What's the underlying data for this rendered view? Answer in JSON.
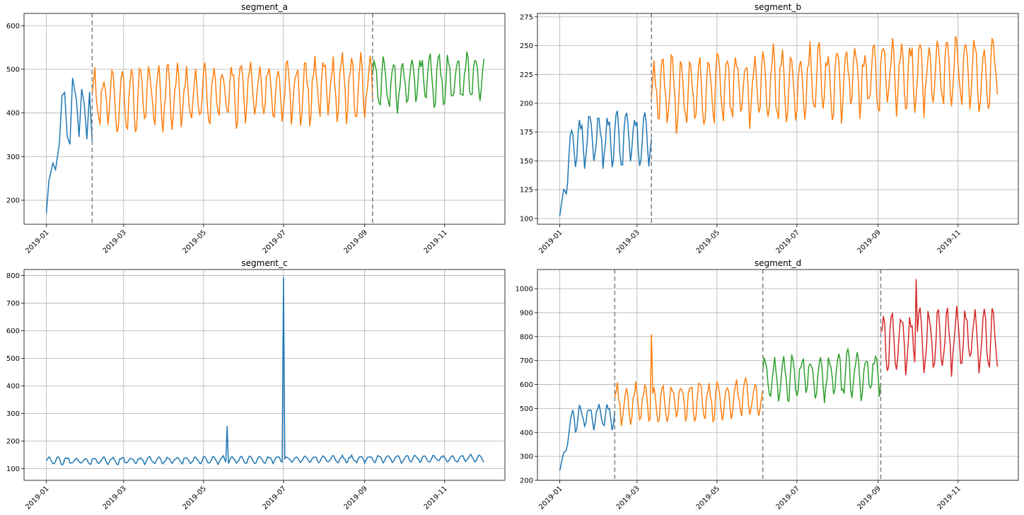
{
  "chart_data": [
    {
      "type": "line",
      "title": "segment_a",
      "x_range": [
        "2018-12-15",
        "2019-12-17"
      ],
      "ylim": [
        145,
        628
      ],
      "x_ticks": [
        "2019-01",
        "2019-03",
        "2019-05",
        "2019-07",
        "2019-09",
        "2019-11"
      ],
      "y_ticks": [
        200,
        300,
        400,
        500,
        600
      ],
      "grid": true,
      "change_points": [
        "2019-02-05",
        "2019-09-07"
      ],
      "series": [
        {
          "color": "#1f77b4",
          "x_start": "2019-01-01",
          "x_end": "2019-02-05",
          "points": [
            [
              "2019-01-01",
              170
            ],
            [
              "2019-01-03",
              245
            ],
            [
              "2019-01-06",
              285
            ],
            [
              "2019-01-08",
              270
            ],
            [
              "2019-01-11",
              330
            ],
            [
              "2019-01-13",
              440
            ],
            [
              "2019-01-15",
              447
            ],
            [
              "2019-01-17",
              345
            ],
            [
              "2019-01-19",
              328
            ],
            [
              "2019-01-21",
              480
            ],
            [
              "2019-01-24",
              430
            ],
            [
              "2019-01-26",
              345
            ],
            [
              "2019-01-28",
              455
            ],
            [
              "2019-01-30",
              420
            ],
            [
              "2019-02-01",
              340
            ],
            [
              "2019-02-03",
              448
            ],
            [
              "2019-02-05",
              335
            ]
          ]
        },
        {
          "color": "#ff7f0e",
          "x_start": "2019-02-05",
          "x_end": "2019-09-07",
          "baseline": 440,
          "amplitude": 80,
          "period_days": 7
        },
        {
          "color": "#2ca02c",
          "x_start": "2019-09-07",
          "x_end": "2019-12-01",
          "baseline": 480,
          "amplitude": 70,
          "period_days": 7
        }
      ]
    },
    {
      "type": "line",
      "title": "segment_b",
      "x_range": [
        "2018-12-15",
        "2019-12-17"
      ],
      "ylim": [
        95,
        278
      ],
      "x_ticks": [
        "2019-01",
        "2019-03",
        "2019-05",
        "2019-07",
        "2019-09",
        "2019-11"
      ],
      "y_ticks": [
        100,
        125,
        150,
        175,
        200,
        225,
        250,
        275
      ],
      "grid": true,
      "change_points": [
        "2019-03-12"
      ],
      "series": [
        {
          "color": "#1f77b4",
          "x_start": "2019-01-01",
          "x_end": "2019-03-12",
          "baseline": 170,
          "amplitude": 25,
          "period_days": 7,
          "start_value": 102
        },
        {
          "color": "#ff7f0e",
          "x_start": "2019-03-12",
          "x_end": "2019-12-01",
          "baseline": 215,
          "amplitude": 35,
          "period_days": 7
        }
      ]
    },
    {
      "type": "line",
      "title": "segment_c",
      "x_range": [
        "2018-12-15",
        "2019-12-17"
      ],
      "ylim": [
        58,
        822
      ],
      "x_ticks": [
        "2019-01",
        "2019-03",
        "2019-05",
        "2019-07",
        "2019-09",
        "2019-11"
      ],
      "y_ticks": [
        100,
        200,
        300,
        400,
        500,
        600,
        700,
        800
      ],
      "grid": true,
      "change_points": [],
      "series": [
        {
          "color": "#1f77b4",
          "x_start": "2019-01-01",
          "x_end": "2019-12-01",
          "baseline": 130,
          "amplitude": 15,
          "period_days": 7,
          "spikes": [
            [
              "2019-05-19",
              255
            ],
            [
              "2019-07-01",
              795
            ]
          ]
        }
      ]
    },
    {
      "type": "line",
      "title": "segment_d",
      "x_range": [
        "2018-12-15",
        "2019-12-17"
      ],
      "ylim": [
        200,
        1080
      ],
      "x_ticks": [
        "2019-01",
        "2019-03",
        "2019-05",
        "2019-07",
        "2019-09",
        "2019-11"
      ],
      "y_ticks": [
        200,
        300,
        400,
        500,
        600,
        700,
        800,
        900,
        1000
      ],
      "grid": true,
      "change_points": [
        "2019-02-12",
        "2019-06-05",
        "2019-09-03"
      ],
      "series": [
        {
          "color": "#1f77b4",
          "x_start": "2019-01-01",
          "x_end": "2019-02-12",
          "baseline": 470,
          "amplitude": 60,
          "period_days": 7,
          "start_value": 240
        },
        {
          "color": "#ff7f0e",
          "x_start": "2019-02-12",
          "x_end": "2019-06-05",
          "baseline": 530,
          "amplitude": 90,
          "period_days": 7,
          "spikes": [
            [
              "2019-03-12",
              810
            ]
          ]
        },
        {
          "color": "#2ca02c",
          "x_start": "2019-06-05",
          "x_end": "2019-09-03",
          "baseline": 640,
          "amplitude": 110,
          "period_days": 7
        },
        {
          "color": "#d62728",
          "x_start": "2019-09-03",
          "x_end": "2019-12-01",
          "baseline": 790,
          "amplitude": 140,
          "period_days": 7,
          "spikes": [
            [
              "2019-09-30",
              1040
            ]
          ]
        }
      ]
    }
  ],
  "colors": {
    "grid": "#b0b0b0",
    "axis": "#000000",
    "change_point": "#808080"
  }
}
